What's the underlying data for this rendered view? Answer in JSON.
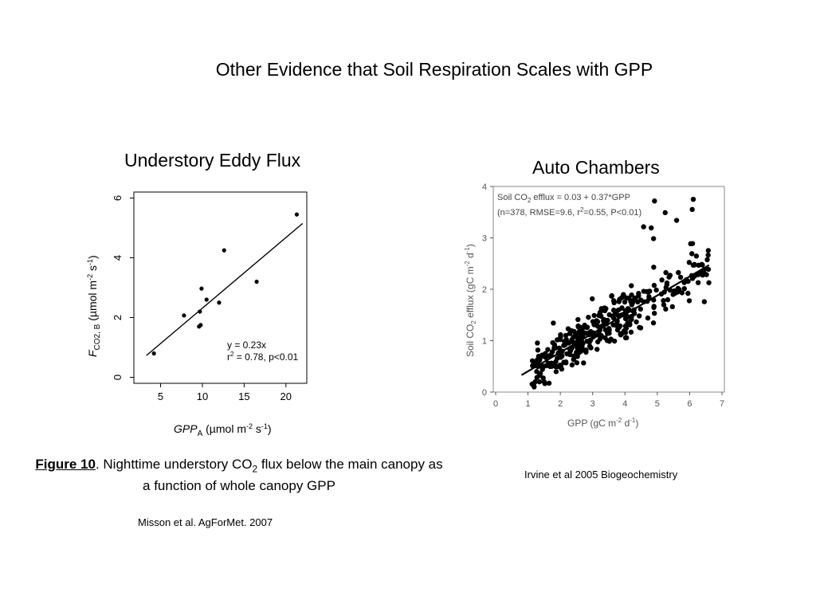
{
  "slide": {
    "title": "Other Evidence that Soil Respiration Scales with GPP"
  },
  "left_panel": {
    "heading": "Understory Eddy Flux",
    "equation_line1": "y = 0.23x",
    "equation_line2_pre": "r",
    "equation_line2_sup": "2",
    "equation_line2_post": " = 0.78, p<0.01",
    "xlabel_main": "GPP",
    "xlabel_sub": "A",
    "xlabel_unit_pre": " (µmol m",
    "xlabel_unit_sup1": "-2",
    "xlabel_unit_mid": " s",
    "xlabel_unit_sup2": "-1",
    "xlabel_unit_post": ")",
    "ylabel_main": "F",
    "ylabel_sub": "CO2, B",
    "ylabel_unit_pre": " (µmol m",
    "ylabel_unit_sup1": "-2",
    "ylabel_unit_mid": " s",
    "ylabel_unit_sup2": "-1",
    "ylabel_unit_post": ")"
  },
  "right_panel": {
    "heading": "Auto Chambers",
    "annotation_line1_pre": "Soil CO",
    "annotation_line1_sub": "2",
    "annotation_line1_post": " efflux = 0.03 + 0.37*GPP",
    "annotation_line2_pre": "(n=378, RMSE=9.6, r",
    "annotation_line2_sup": "2",
    "annotation_line2_post": "=0.55, P<0.01)",
    "xlabel_pre": "GPP (gC m",
    "xlabel_sup1": "-2",
    "xlabel_mid": " d",
    "xlabel_sup2": "-1",
    "xlabel_post": ")",
    "ylabel_pre": "Soil CO",
    "ylabel_sub": "2",
    "ylabel_mid": " efflux (gC m",
    "ylabel_sup1": "-2",
    "ylabel_mid2": " d",
    "ylabel_sup2": "-1",
    "ylabel_post": ")"
  },
  "caption": {
    "figure_label": "Figure 10",
    "text_pre": ". Nighttime understory CO",
    "text_sub": "2",
    "text_post": " flux below the main canopy as a function of whole canopy GPP"
  },
  "references": {
    "left": "Misson et al. AgForMet. 2007",
    "right": "Irvine et al 2005 Biogeochemistry"
  },
  "chart_data": [
    {
      "type": "scatter",
      "title": "Understory Eddy Flux",
      "x_ticks": [
        5,
        10,
        15,
        20
      ],
      "y_ticks": [
        0,
        2,
        4,
        6
      ],
      "xlim": [
        1.8,
        22.5
      ],
      "ylim": [
        -0.2,
        6.2
      ],
      "points": [
        {
          "x": 4.2,
          "y": 0.8
        },
        {
          "x": 7.8,
          "y": 2.07
        },
        {
          "x": 9.6,
          "y": 1.7
        },
        {
          "x": 9.8,
          "y": 1.75
        },
        {
          "x": 9.7,
          "y": 2.2
        },
        {
          "x": 9.9,
          "y": 2.97
        },
        {
          "x": 10.5,
          "y": 2.6
        },
        {
          "x": 12.0,
          "y": 2.5
        },
        {
          "x": 12.6,
          "y": 4.25
        },
        {
          "x": 16.5,
          "y": 3.2
        },
        {
          "x": 21.3,
          "y": 5.45
        }
      ],
      "fit_line": [
        {
          "x": 3.3,
          "y": 0.73
        },
        {
          "x": 22.0,
          "y": 5.15
        }
      ],
      "grid": false
    },
    {
      "type": "scatter",
      "title": "Auto Chambers",
      "x_ticks": [
        0,
        1,
        2,
        3,
        4,
        5,
        6,
        7
      ],
      "y_ticks": [
        0,
        1,
        2,
        3,
        4
      ],
      "xlim": [
        0,
        7
      ],
      "ylim": [
        0,
        4
      ],
      "n_points": 378,
      "fit_line": [
        {
          "x": 0.8,
          "y": 0.33
        },
        {
          "x": 6.6,
          "y": 2.47
        }
      ],
      "grid": false
    }
  ]
}
